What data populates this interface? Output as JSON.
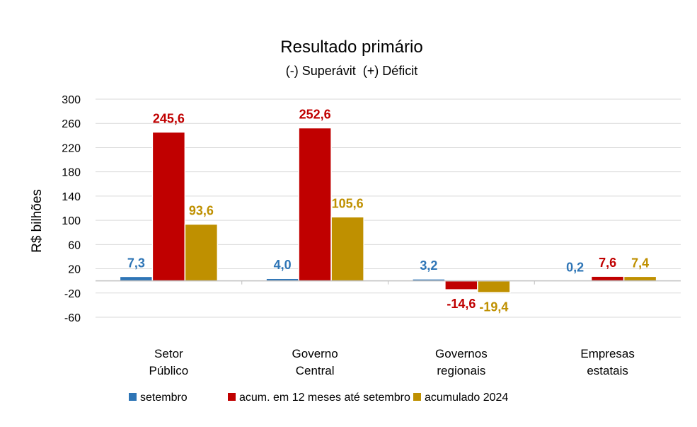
{
  "chart_data": {
    "type": "bar",
    "title": "Resultado primário",
    "subtitle": "(-) Superávit  (+) Déficit",
    "ylabel": "R$ bilhões",
    "ylim": [
      -60,
      300
    ],
    "yticks": [
      300,
      260,
      220,
      180,
      140,
      100,
      60,
      20,
      -20,
      -60
    ],
    "grid": true,
    "legend_position": "bottom",
    "categories": [
      [
        "Setor",
        "Público"
      ],
      [
        "Governo",
        "Central"
      ],
      [
        "Governos",
        "regionais"
      ],
      [
        "Empresas",
        "estatais"
      ]
    ],
    "series": [
      {
        "name": "setembro",
        "color": "#2E75B6",
        "values": [
          7.3,
          4.0,
          3.2,
          0.2
        ],
        "labels": [
          "7,3",
          "4,0",
          "3,2",
          "0,2"
        ]
      },
      {
        "name": "acum. em 12 meses até setembro",
        "color": "#C00000",
        "values": [
          245.6,
          252.6,
          -14.6,
          7.6
        ],
        "labels": [
          "245,6",
          "252,6",
          "-14,6",
          "7,6"
        ]
      },
      {
        "name": "acumulado 2024",
        "color": "#BF9000",
        "values": [
          93.6,
          105.6,
          -19.4,
          7.4
        ],
        "labels": [
          "93,6",
          "105,6",
          "-19,4",
          "7,4"
        ]
      }
    ]
  }
}
